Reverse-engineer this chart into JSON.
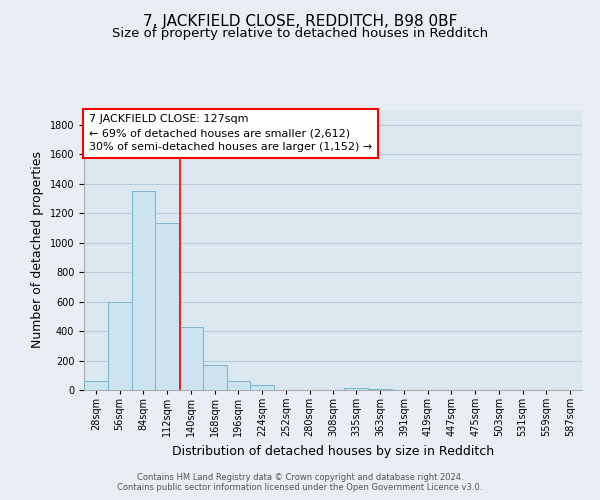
{
  "title": "7, JACKFIELD CLOSE, REDDITCH, B98 0BF",
  "subtitle": "Size of property relative to detached houses in Redditch",
  "xlabel": "Distribution of detached houses by size in Redditch",
  "ylabel": "Number of detached properties",
  "bin_labels": [
    "28sqm",
    "56sqm",
    "84sqm",
    "112sqm",
    "140sqm",
    "168sqm",
    "196sqm",
    "224sqm",
    "252sqm",
    "280sqm",
    "308sqm",
    "335sqm",
    "363sqm",
    "391sqm",
    "419sqm",
    "447sqm",
    "475sqm",
    "503sqm",
    "531sqm",
    "559sqm",
    "587sqm"
  ],
  "bin_width": 28,
  "bin_starts": [
    14,
    42,
    70,
    98,
    126,
    154,
    182,
    210,
    238,
    266,
    294,
    321,
    349,
    377,
    405,
    433,
    461,
    489,
    517,
    545,
    573
  ],
  "bar_values": [
    60,
    600,
    1350,
    1130,
    430,
    170,
    60,
    35,
    0,
    0,
    0,
    15,
    10,
    0,
    0,
    0,
    0,
    0,
    0,
    0,
    0
  ],
  "bar_color": "#cce4f0",
  "bar_edge_color": "#7ab3d0",
  "red_line_x": 127,
  "ylim": [
    0,
    1900
  ],
  "xlim": [
    14,
    601
  ],
  "yticks": [
    0,
    200,
    400,
    600,
    800,
    1000,
    1200,
    1400,
    1600,
    1800
  ],
  "annotation_line1": "7 JACKFIELD CLOSE: 127sqm",
  "annotation_line2": "← 69% of detached houses are smaller (2,612)",
  "annotation_line3": "30% of semi-detached houses are larger (1,152) →",
  "background_color": "#e8eef4",
  "plot_bg_color": "#dce8f0",
  "grid_color": "#b8ccd8",
  "footer_text": "Contains HM Land Registry data © Crown copyright and database right 2024.\nContains public sector information licensed under the Open Government Licence v3.0.",
  "title_fontsize": 11,
  "subtitle_fontsize": 9.5,
  "xlabel_fontsize": 9,
  "ylabel_fontsize": 9,
  "tick_fontsize": 7,
  "annot_fontsize": 8
}
